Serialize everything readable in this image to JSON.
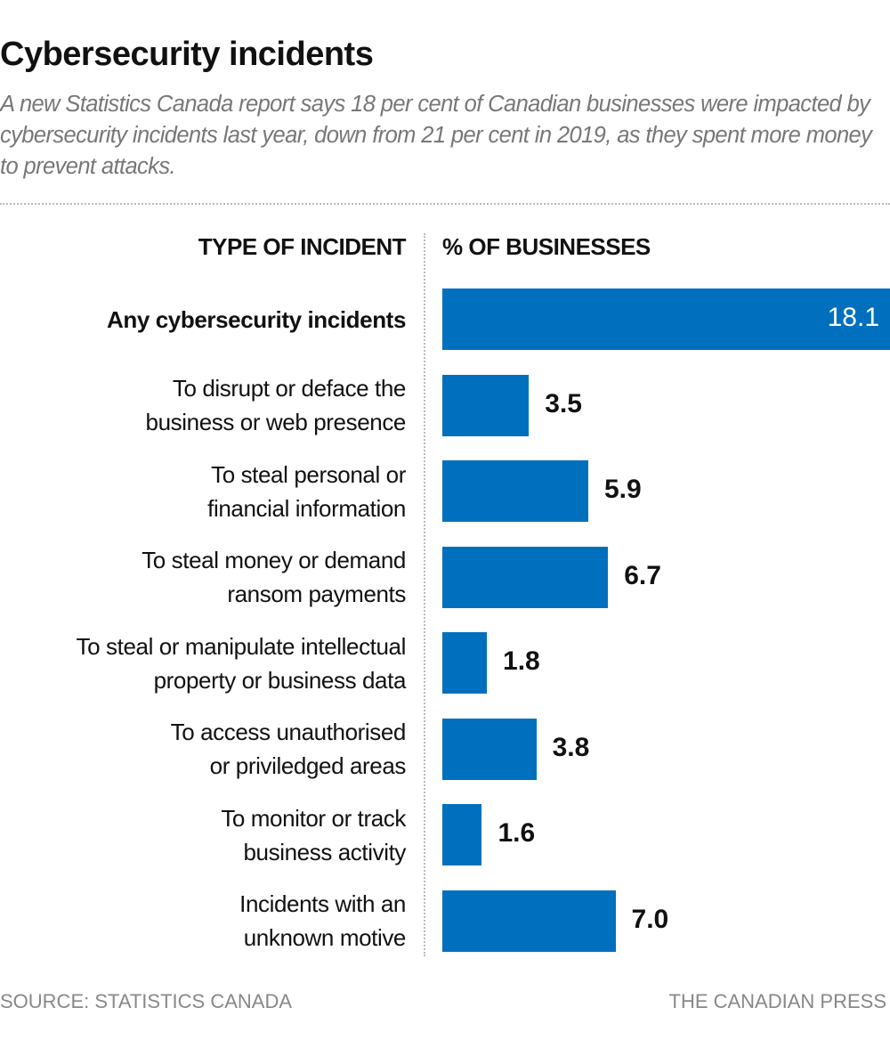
{
  "title": "Cybersecurity incidents",
  "subtitle": "A new Statistics Canada report says 18 per cent of Canadian businesses were impacted by cybersecurity incidents last year, down from 21 per cent in 2019, as they spent more money to prevent attacks.",
  "source": "SOURCE: STATISTICS CANADA",
  "credit": "THE CANADIAN PRESS",
  "chart_data": {
    "type": "bar",
    "orientation": "horizontal",
    "category_header": "TYPE OF INCIDENT",
    "value_header": "% OF BUSINESSES",
    "bar_color": "#0070be",
    "categories": [
      "Any cybersecurity incidents",
      "To disrupt or deface the business or web presence",
      "To steal personal or financial information",
      "To steal money or demand ransom payments",
      "To steal or manipulate intellectual property or business data",
      "To access unauthorised or priviledged areas",
      "To monitor or track business activity",
      "Incidents with an unknown motive"
    ],
    "label_lines": [
      [
        "Any cybersecurity incidents"
      ],
      [
        "To disrupt or deface the",
        "business or web presence"
      ],
      [
        "To steal personal or",
        "financial information"
      ],
      [
        "To steal money or demand",
        "ransom payments"
      ],
      [
        "To steal or manipulate intellectual",
        "property or business data"
      ],
      [
        "To access unauthorised",
        "or priviledged areas"
      ],
      [
        "To monitor or track",
        "business activity"
      ],
      [
        "Incidents with an",
        "unknown motive"
      ]
    ],
    "values": [
      18.1,
      3.5,
      5.9,
      6.7,
      1.8,
      3.8,
      1.6,
      7.0
    ],
    "value_labels": [
      "18.1",
      "3.5",
      "5.9",
      "6.7",
      "1.8",
      "3.8",
      "1.6",
      "7.0"
    ],
    "grid": false
  }
}
